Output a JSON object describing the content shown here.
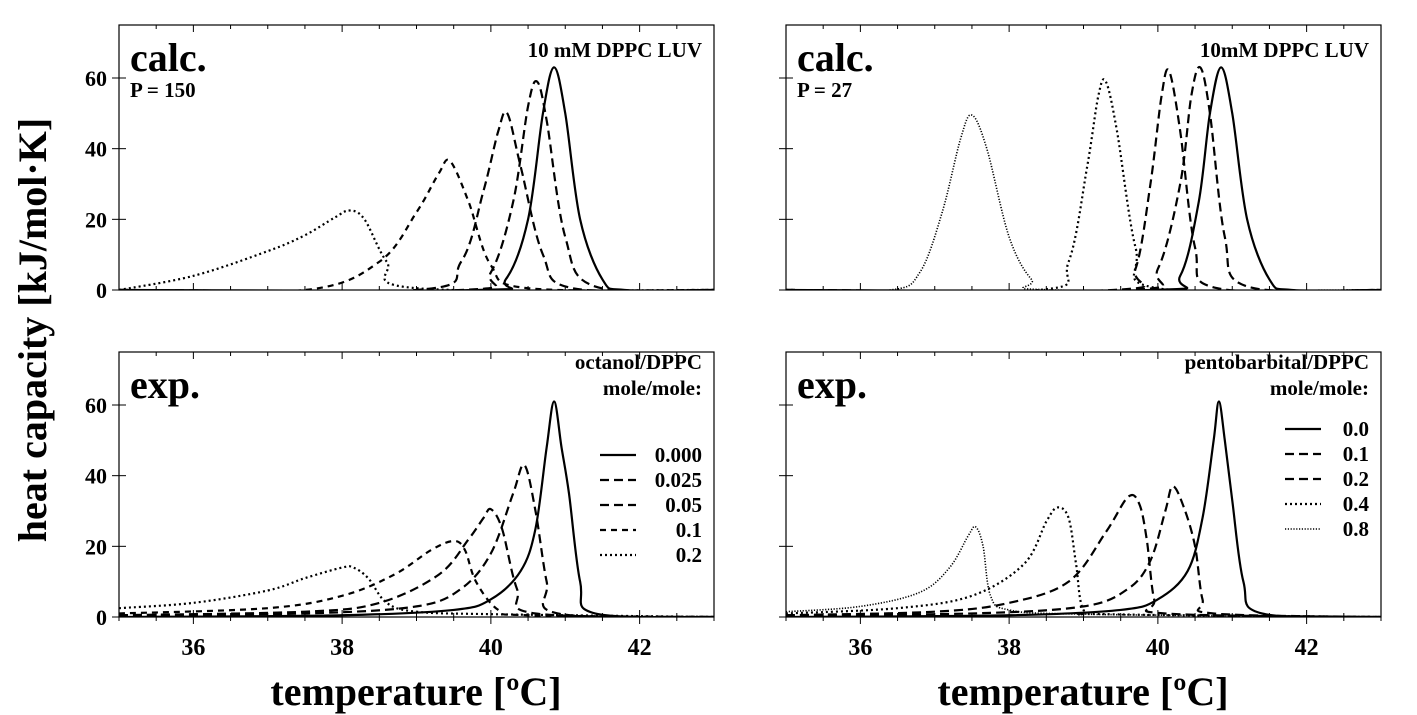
{
  "figure": {
    "ylabel": "heat capacity [kJ/mol·K]",
    "xlabel": "temperature [ºC]"
  },
  "chart_data": [
    {
      "type": "line",
      "id": "calc-octanol",
      "big_label": "calc.",
      "sub_label": "P = 150",
      "note_lines": [
        "10 mM DPPC LUV"
      ],
      "legend_title": [],
      "xlim": [
        35,
        43
      ],
      "ylim": [
        0,
        75
      ],
      "xticks": [
        36,
        38,
        40,
        42
      ],
      "yticks": [
        0,
        20,
        40,
        60
      ],
      "show_xticklabels": false,
      "show_yticklabels": true,
      "series": [
        {
          "name": "0.000",
          "style": "solid",
          "x": [
            35,
            39.8,
            40.2,
            40.5,
            40.7,
            40.85,
            41.0,
            41.2,
            41.5,
            41.8,
            43
          ],
          "y": [
            0,
            0,
            3,
            20,
            50,
            63,
            50,
            20,
            3,
            0,
            0
          ]
        },
        {
          "name": "0.025",
          "style": "dashed",
          "x": [
            35,
            39.6,
            40.0,
            40.3,
            40.5,
            40.62,
            40.75,
            41.0,
            41.4,
            43
          ],
          "y": [
            0,
            0,
            5,
            25,
            52,
            59,
            48,
            15,
            1,
            0
          ]
        },
        {
          "name": "0.05",
          "style": "dashed",
          "x": [
            35,
            39.0,
            39.6,
            39.9,
            40.1,
            40.22,
            40.4,
            40.7,
            41.1,
            43
          ],
          "y": [
            0,
            0,
            8,
            28,
            45,
            50,
            35,
            10,
            0.5,
            0
          ]
        },
        {
          "name": "0.1",
          "style": "dashed-short",
          "x": [
            35,
            37.5,
            38.5,
            39.0,
            39.3,
            39.45,
            39.7,
            40.0,
            40.5,
            43
          ],
          "y": [
            0,
            0,
            8,
            22,
            33,
            36.5,
            25,
            7,
            0.5,
            0
          ]
        },
        {
          "name": "0.2",
          "style": "dotted",
          "x": [
            35,
            36.0,
            37.0,
            37.5,
            37.9,
            38.1,
            38.3,
            38.6,
            39.0,
            43
          ],
          "y": [
            0,
            4,
            11,
            15.5,
            20.5,
            22.5,
            20,
            8,
            0.5,
            0
          ]
        }
      ]
    },
    {
      "type": "line",
      "id": "calc-pentobarbital",
      "big_label": "calc.",
      "sub_label": "P = 27",
      "note_lines": [
        "10mM DPPC LUV"
      ],
      "legend_title": [],
      "xlim": [
        35,
        43
      ],
      "ylim": [
        0,
        75
      ],
      "xticks": [
        36,
        38,
        40,
        42
      ],
      "yticks": [
        0,
        20,
        40,
        60
      ],
      "show_xticklabels": false,
      "show_yticklabels": false,
      "series": [
        {
          "name": "0.0",
          "style": "solid",
          "x": [
            35,
            39.9,
            40.3,
            40.55,
            40.7,
            40.85,
            41.0,
            41.2,
            41.5,
            41.8,
            43
          ],
          "y": [
            0,
            0,
            4,
            25,
            50,
            63,
            50,
            20,
            3,
            0,
            0
          ]
        },
        {
          "name": "0.1",
          "style": "dashed",
          "x": [
            35,
            39.6,
            40.0,
            40.3,
            40.45,
            40.57,
            40.7,
            40.9,
            41.2,
            43
          ],
          "y": [
            0,
            0,
            6,
            30,
            55,
            63,
            50,
            15,
            1,
            0
          ]
        },
        {
          "name": "0.2",
          "style": "dashed",
          "x": [
            35,
            39.4,
            39.7,
            39.9,
            40.05,
            40.15,
            40.3,
            40.5,
            40.8,
            43
          ],
          "y": [
            0,
            0,
            6,
            30,
            55,
            62,
            45,
            12,
            0.5,
            0
          ]
        },
        {
          "name": "0.4",
          "style": "dotted",
          "x": [
            35,
            38.4,
            38.8,
            39.05,
            39.2,
            39.3,
            39.45,
            39.7,
            40.0,
            43
          ],
          "y": [
            0,
            0,
            8,
            35,
            55,
            59,
            45,
            12,
            0.5,
            0
          ]
        },
        {
          "name": "0.8",
          "style": "dotted-fine",
          "x": [
            35,
            36.4,
            36.8,
            37.1,
            37.35,
            37.5,
            37.7,
            38.0,
            38.3,
            38.6,
            43
          ],
          "y": [
            0,
            0,
            5,
            22,
            43,
            49.5,
            40,
            15,
            3,
            0,
            0
          ]
        }
      ]
    },
    {
      "type": "line",
      "id": "exp-octanol",
      "big_label": "exp.",
      "sub_label": "",
      "note_lines": [],
      "legend_title": [
        "octanol/DPPC",
        "mole/mole:"
      ],
      "xlim": [
        35,
        43
      ],
      "ylim": [
        0,
        75
      ],
      "xticks": [
        36,
        38,
        40,
        42
      ],
      "yticks": [
        0,
        20,
        40,
        60
      ],
      "show_xticklabels": true,
      "show_yticklabels": true,
      "series": [
        {
          "name": "0.000",
          "style": "solid",
          "x": [
            35,
            38.0,
            39.5,
            40.0,
            40.4,
            40.6,
            40.75,
            40.85,
            40.95,
            41.05,
            41.2,
            41.4,
            43
          ],
          "y": [
            0,
            0.5,
            2,
            5,
            13,
            25,
            48,
            61,
            48,
            35,
            10,
            1,
            0
          ]
        },
        {
          "name": "0.025",
          "style": "dashed",
          "x": [
            35,
            37.5,
            39.0,
            39.6,
            40.0,
            40.3,
            40.45,
            40.6,
            40.75,
            40.9,
            43
          ],
          "y": [
            0.5,
            1,
            3,
            8,
            18,
            35,
            43,
            30,
            10,
            1,
            0
          ]
        },
        {
          "name": "0.05",
          "style": "dashed",
          "x": [
            35,
            37.5,
            38.5,
            39.3,
            39.7,
            39.9,
            40.0,
            40.15,
            40.35,
            40.6,
            43
          ],
          "y": [
            0.5,
            1.5,
            4,
            12,
            22,
            28,
            30.5,
            25,
            8,
            1,
            0
          ]
        },
        {
          "name": "0.1",
          "style": "dashed-short",
          "x": [
            35,
            37.0,
            38.0,
            38.7,
            39.2,
            39.5,
            39.65,
            39.8,
            40.1,
            40.5,
            43
          ],
          "y": [
            1,
            2.5,
            6,
            12,
            19,
            21.5,
            19,
            10,
            2,
            0.5,
            0
          ]
        },
        {
          "name": "0.2",
          "style": "dotted",
          "x": [
            35,
            36.0,
            37.0,
            37.5,
            38.0,
            38.15,
            38.35,
            38.6,
            39.0,
            40.0,
            43
          ],
          "y": [
            2.5,
            4,
            7.5,
            11,
            14,
            14,
            11,
            4,
            1.5,
            0.8,
            0
          ]
        }
      ]
    },
    {
      "type": "line",
      "id": "exp-pentobarbital",
      "big_label": "exp.",
      "sub_label": "",
      "note_lines": [],
      "legend_title": [
        "pentobarbital/DPPC",
        "mole/mole:"
      ],
      "xlim": [
        35,
        43
      ],
      "ylim": [
        0,
        75
      ],
      "xticks": [
        36,
        38,
        40,
        42
      ],
      "yticks": [
        0,
        20,
        40,
        60
      ],
      "show_xticklabels": true,
      "show_yticklabels": false,
      "series": [
        {
          "name": "0.0",
          "style": "solid",
          "x": [
            35,
            38.0,
            39.5,
            40.0,
            40.4,
            40.6,
            40.75,
            40.82,
            40.9,
            41.0,
            41.15,
            41.4,
            43
          ],
          "y": [
            0,
            0.5,
            2,
            5,
            13,
            28,
            50,
            61,
            50,
            33,
            10,
            1,
            0
          ]
        },
        {
          "name": "0.1",
          "style": "dashed",
          "x": [
            35,
            37.5,
            39.0,
            39.6,
            39.9,
            40.1,
            40.2,
            40.35,
            40.5,
            40.6,
            40.75,
            43
          ],
          "y": [
            0.5,
            1,
            3,
            8,
            16,
            30,
            37,
            31,
            20,
            5,
            1,
            0
          ]
        },
        {
          "name": "0.2",
          "style": "dashed",
          "x": [
            35,
            37.0,
            38.0,
            38.8,
            39.3,
            39.6,
            39.75,
            39.85,
            39.95,
            40.1,
            43
          ],
          "y": [
            0.5,
            1.5,
            4,
            10,
            24,
            34,
            32,
            22,
            5,
            1,
            0
          ]
        },
        {
          "name": "0.4",
          "style": "dotted",
          "x": [
            35,
            36.5,
            37.5,
            38.2,
            38.5,
            38.65,
            38.8,
            38.9,
            39.0,
            39.3,
            43
          ],
          "y": [
            1,
            2.5,
            6,
            15,
            27,
            31,
            28,
            15,
            2,
            0.8,
            0
          ]
        },
        {
          "name": "0.8",
          "style": "dotted-fine",
          "x": [
            35,
            36.0,
            36.8,
            37.2,
            37.45,
            37.55,
            37.65,
            37.75,
            38.0,
            39.0,
            43
          ],
          "y": [
            1.5,
            3,
            7,
            14,
            23,
            25.5,
            20,
            6,
            2,
            0.8,
            0
          ]
        }
      ]
    }
  ]
}
